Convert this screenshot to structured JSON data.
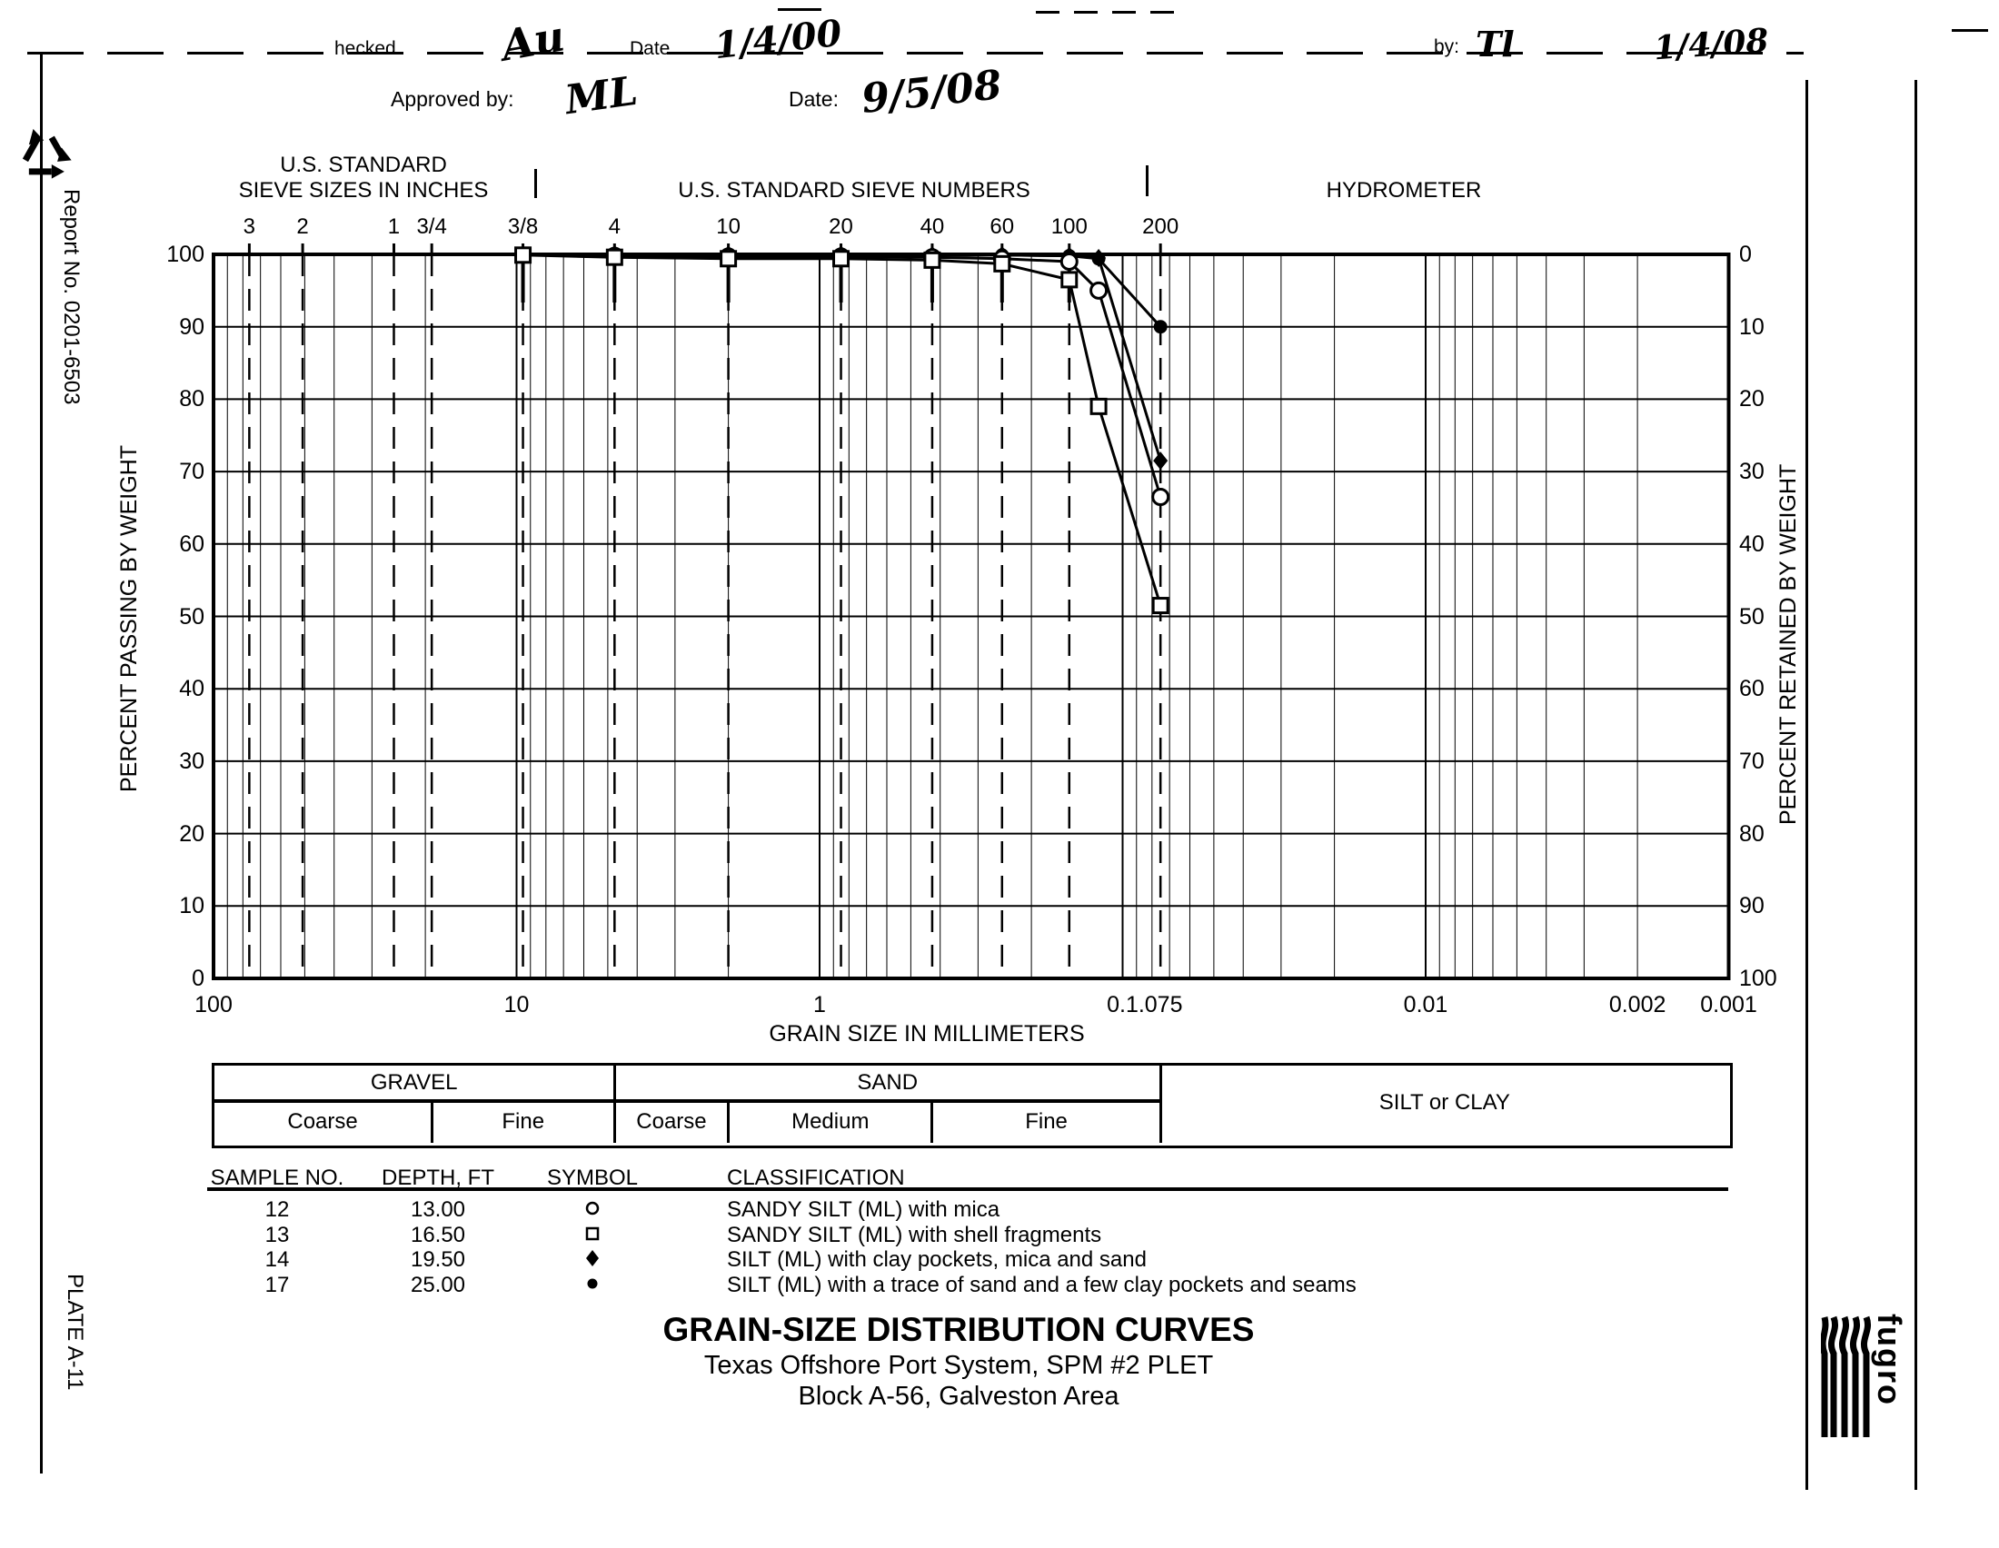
{
  "scan_header": {
    "checked_label": "hecked",
    "checked_signature": "Au",
    "checked_date_label": "Date",
    "checked_date": "1/4/00",
    "approved_label": "Approved by:",
    "approved_signature": "ML",
    "approved_date_label": "Date:",
    "approved_date": "9/5/08",
    "right_by_label": "by:",
    "right_by_signature": "Tl",
    "right_date": "1/4/08"
  },
  "margins": {
    "report_no": "Report No. 0201-6503",
    "plate": "PLATE A-11"
  },
  "chart": {
    "section_header_left_line1": "U.S. STANDARD",
    "section_header_left_line2": "SIEVE SIZES IN INCHES",
    "section_header_middle": "U.S. STANDARD SIEVE NUMBERS",
    "section_header_right": "HYDROMETER",
    "y_left_title": "PERCENT PASSING BY WEIGHT",
    "y_right_title": "PERCENT RETAINED BY WEIGHT",
    "x_label": "GRAIN SIZE IN MILLIMETERS"
  },
  "chart_data": {
    "type": "line",
    "title": "GRAIN-SIZE DISTRIBUTION CURVES",
    "x_axis": {
      "label": "GRAIN SIZE IN MILLIMETERS",
      "scale": "log",
      "min": 0.001,
      "max": 100,
      "tick_labels": [
        "100",
        "10",
        "1",
        "0.1",
        ".075",
        "0.01",
        "0.002",
        "0.001"
      ],
      "tick_values": [
        100,
        10,
        1,
        0.1,
        0.075,
        0.01,
        0.002,
        0.001
      ]
    },
    "y_axis_left": {
      "label": "PERCENT PASSING BY WEIGHT",
      "min": 0,
      "max": 100,
      "ticks": [
        100,
        90,
        80,
        70,
        60,
        50,
        40,
        30,
        20,
        10,
        0
      ]
    },
    "y_axis_right": {
      "label": "PERCENT RETAINED BY WEIGHT",
      "min": 0,
      "max": 100,
      "ticks": [
        0,
        10,
        20,
        30,
        40,
        50,
        60,
        70,
        80,
        90,
        100
      ]
    },
    "sieve_ticks": [
      {
        "label": "3",
        "mm": 76.2
      },
      {
        "label": "2",
        "mm": 50.8
      },
      {
        "label": "1",
        "mm": 25.4
      },
      {
        "label": "3/4",
        "mm": 19.05
      },
      {
        "label": "3/8",
        "mm": 9.525
      },
      {
        "label": "4",
        "mm": 4.75
      },
      {
        "label": "10",
        "mm": 2.0
      },
      {
        "label": "20",
        "mm": 0.85
      },
      {
        "label": "40",
        "mm": 0.425
      },
      {
        "label": "60",
        "mm": 0.25
      },
      {
        "label": "100",
        "mm": 0.15
      },
      {
        "label": "200",
        "mm": 0.075
      }
    ],
    "grid": true,
    "legend_position": "table-below",
    "series": [
      {
        "sample_no": "17",
        "symbol": "circle-filled",
        "points": [
          {
            "mm": 4.75,
            "pct": 100
          },
          {
            "mm": 2.0,
            "pct": 100
          },
          {
            "mm": 0.85,
            "pct": 100
          },
          {
            "mm": 0.425,
            "pct": 99.9
          },
          {
            "mm": 0.25,
            "pct": 99.9
          },
          {
            "mm": 0.15,
            "pct": 99.8
          },
          {
            "mm": 0.12,
            "pct": 99.4
          },
          {
            "mm": 0.075,
            "pct": 90.0
          }
        ]
      },
      {
        "sample_no": "14",
        "symbol": "diamond-filled",
        "points": [
          {
            "mm": 4.75,
            "pct": 100
          },
          {
            "mm": 2.0,
            "pct": 100
          },
          {
            "mm": 0.85,
            "pct": 100
          },
          {
            "mm": 0.425,
            "pct": 99.9
          },
          {
            "mm": 0.25,
            "pct": 99.9
          },
          {
            "mm": 0.15,
            "pct": 99.8
          },
          {
            "mm": 0.12,
            "pct": 99.5
          },
          {
            "mm": 0.075,
            "pct": 71.5
          }
        ]
      },
      {
        "sample_no": "12",
        "symbol": "circle-open",
        "points": [
          {
            "mm": 4.75,
            "pct": 99.8
          },
          {
            "mm": 2.0,
            "pct": 99.7
          },
          {
            "mm": 0.85,
            "pct": 99.7
          },
          {
            "mm": 0.425,
            "pct": 99.6
          },
          {
            "mm": 0.25,
            "pct": 99.4
          },
          {
            "mm": 0.15,
            "pct": 99.0
          },
          {
            "mm": 0.12,
            "pct": 95.0
          },
          {
            "mm": 0.075,
            "pct": 66.5
          }
        ]
      },
      {
        "sample_no": "13",
        "symbol": "square-open",
        "points": [
          {
            "mm": 9.525,
            "pct": 99.9
          },
          {
            "mm": 4.75,
            "pct": 99.6
          },
          {
            "mm": 2.0,
            "pct": 99.4
          },
          {
            "mm": 0.85,
            "pct": 99.4
          },
          {
            "mm": 0.425,
            "pct": 99.2
          },
          {
            "mm": 0.25,
            "pct": 98.7
          },
          {
            "mm": 0.15,
            "pct": 96.5
          },
          {
            "mm": 0.12,
            "pct": 79.0
          },
          {
            "mm": 0.075,
            "pct": 51.5
          }
        ]
      }
    ]
  },
  "bands": {
    "top_row": [
      {
        "label": "GRAVEL",
        "from_mm": 100,
        "to_mm": 4.75
      },
      {
        "label": "SAND",
        "from_mm": 4.75,
        "to_mm": 0.075
      },
      {
        "label": "SILT or CLAY",
        "from_mm": 0.075,
        "to_mm": 0.001,
        "full_height": true
      }
    ],
    "bottom_row": [
      {
        "label": "Coarse",
        "from_mm": 100,
        "to_mm": 19.05
      },
      {
        "label": "Fine",
        "from_mm": 19.05,
        "to_mm": 4.75
      },
      {
        "label": "Coarse",
        "from_mm": 4.75,
        "to_mm": 2.0
      },
      {
        "label": "Medium",
        "from_mm": 2.0,
        "to_mm": 0.425
      },
      {
        "label": "Fine",
        "from_mm": 0.425,
        "to_mm": 0.075
      }
    ]
  },
  "samples": {
    "headers": [
      "SAMPLE NO.",
      "DEPTH, FT",
      "SYMBOL",
      "CLASSIFICATION"
    ],
    "rows": [
      {
        "no": "12",
        "depth": "13.00",
        "symbol": "circle-open",
        "classification": "SANDY SILT (ML) with mica"
      },
      {
        "no": "13",
        "depth": "16.50",
        "symbol": "square-open",
        "classification": "SANDY SILT (ML) with shell fragments"
      },
      {
        "no": "14",
        "depth": "19.50",
        "symbol": "diamond-filled",
        "classification": "SILT (ML) with clay pockets, mica and sand"
      },
      {
        "no": "17",
        "depth": "25.00",
        "symbol": "circle-filled",
        "classification": "SILT (ML) with a trace of sand and a few clay pockets and seams"
      }
    ]
  },
  "title_block": {
    "title": "GRAIN-SIZE DISTRIBUTION CURVES",
    "line2": "Texas Offshore Port System, SPM #2 PLET",
    "line3": "Block A-56, Galveston Area"
  },
  "logo": {
    "text": "fugro"
  }
}
